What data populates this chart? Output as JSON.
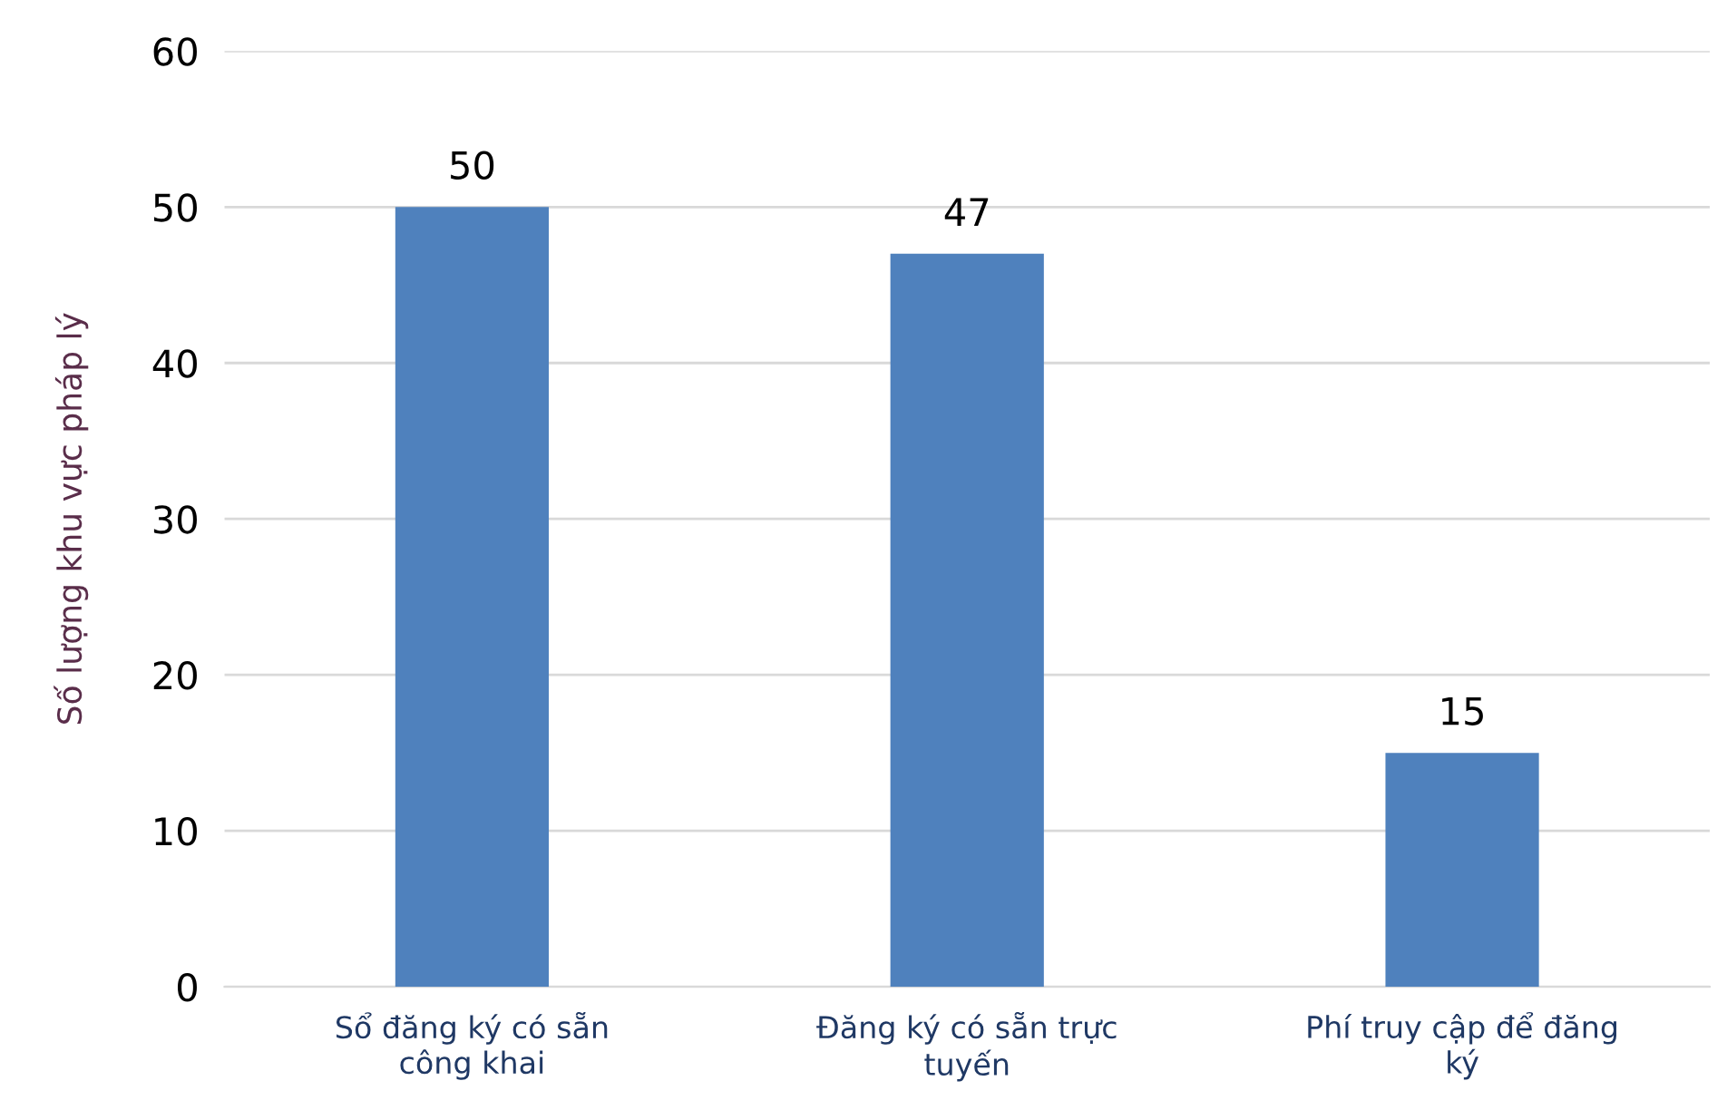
{
  "chart_data": {
    "type": "bar",
    "ylabel": "Số lượng khu vực pháp lý",
    "categories": [
      "Sổ đăng ký có sẵn\ncông khai",
      "Đăng ký có sẵn trực\ntuyến",
      "Phí truy cập để đăng\nký"
    ],
    "values": [
      50,
      47,
      15
    ],
    "color": "#4f81bd",
    "ylim": [
      0,
      60
    ],
    "yticks": [
      0,
      10,
      20,
      30,
      40,
      50,
      60
    ],
    "grid": "y",
    "data_labels": true
  }
}
